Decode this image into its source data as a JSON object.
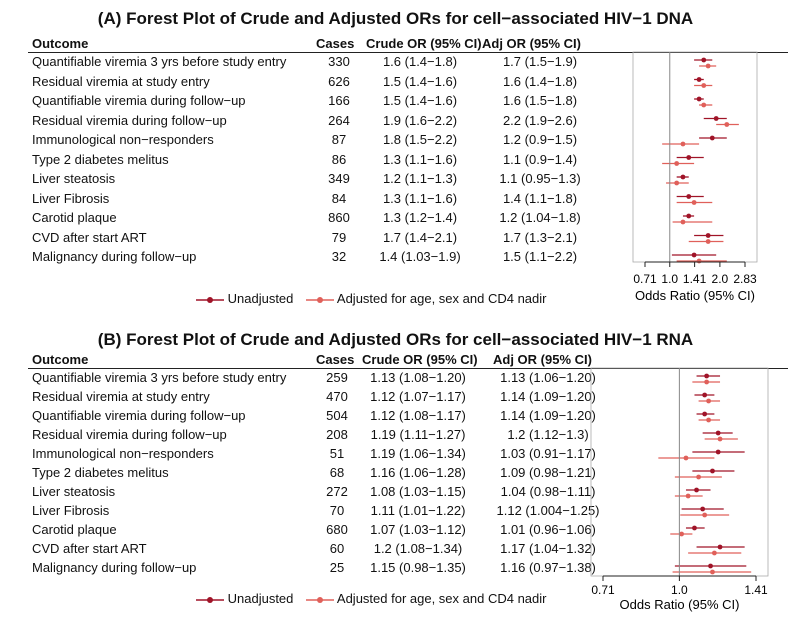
{
  "chart_data": [
    {
      "type": "forest",
      "title": "(A) Forest Plot of Crude and Adjusted ORs for cell−associated HIV−1 DNA",
      "columns": [
        "Outcome",
        "Cases",
        "Crude OR (95% CI)",
        "Adj OR (95% CI)"
      ],
      "xlabel": "Odds Ratio (95% CI)",
      "xscale": "log",
      "xticks": [
        "0.71",
        "1.0",
        "1.41",
        "2.0",
        "2.83"
      ],
      "xlim": [
        0.71,
        2.83
      ],
      "reference_line": 1.0,
      "legend": [
        "Unadjusted",
        "Adjusted for age, sex and CD4 nadir"
      ],
      "colors": {
        "unadjusted": "#a01428",
        "adjusted": "#e0605a"
      },
      "rows": [
        {
          "outcome": "Quantifiable viremia 3 yrs before study entry",
          "cases": "330",
          "crude_text": "1.6 (1.4−1.8)",
          "adj_text": "1.7 (1.5−1.9)",
          "crude": [
            1.6,
            1.4,
            1.8
          ],
          "adj": [
            1.7,
            1.5,
            1.9
          ]
        },
        {
          "outcome": "Residual viremia at study entry",
          "cases": "626",
          "crude_text": "1.5 (1.4−1.6)",
          "adj_text": "1.6 (1.4−1.8)",
          "crude": [
            1.5,
            1.4,
            1.6
          ],
          "adj": [
            1.6,
            1.4,
            1.8
          ]
        },
        {
          "outcome": "Quantifiable viremia during follow−up",
          "cases": "166",
          "crude_text": "1.5 (1.4−1.6)",
          "adj_text": "1.6 (1.5−1.8)",
          "crude": [
            1.5,
            1.4,
            1.6
          ],
          "adj": [
            1.6,
            1.5,
            1.8
          ]
        },
        {
          "outcome": "Residual viremia during follow−up",
          "cases": "264",
          "crude_text": "1.9 (1.6−2.2)",
          "adj_text": "2.2 (1.9−2.6)",
          "crude": [
            1.9,
            1.6,
            2.2
          ],
          "adj": [
            2.2,
            1.9,
            2.6
          ]
        },
        {
          "outcome": "Immunological non−responders",
          "cases": "87",
          "crude_text": "1.8 (1.5−2.2)",
          "adj_text": "1.2 (0.9−1.5)",
          "crude": [
            1.8,
            1.5,
            2.2
          ],
          "adj": [
            1.2,
            0.9,
            1.5
          ]
        },
        {
          "outcome": "Type 2 diabetes melitus",
          "cases": "86",
          "crude_text": "1.3 (1.1−1.6)",
          "adj_text": "1.1 (0.9−1.4)",
          "crude": [
            1.3,
            1.1,
            1.6
          ],
          "adj": [
            1.1,
            0.9,
            1.4
          ]
        },
        {
          "outcome": "Liver steatosis",
          "cases": "349",
          "crude_text": "1.2 (1.1−1.3)",
          "adj_text": "1.1 (0.95−1.3)",
          "crude": [
            1.2,
            1.1,
            1.3
          ],
          "adj": [
            1.1,
            0.95,
            1.3
          ]
        },
        {
          "outcome": "Liver Fibrosis",
          "cases": "84",
          "crude_text": "1.3 (1.1−1.6)",
          "adj_text": "1.4 (1.1−1.8)",
          "crude": [
            1.3,
            1.1,
            1.6
          ],
          "adj": [
            1.4,
            1.1,
            1.8
          ]
        },
        {
          "outcome": "Carotid plaque",
          "cases": "860",
          "crude_text": "1.3 (1.2−1.4)",
          "adj_text": "1.2 (1.04−1.8)",
          "crude": [
            1.3,
            1.2,
            1.4
          ],
          "adj": [
            1.2,
            1.04,
            1.8
          ]
        },
        {
          "outcome": "CVD after start ART",
          "cases": "79",
          "crude_text": "1.7 (1.4−2.1)",
          "adj_text": "1.7 (1.3−2.1)",
          "crude": [
            1.7,
            1.4,
            2.1
          ],
          "adj": [
            1.7,
            1.3,
            2.1
          ]
        },
        {
          "outcome": "Malignancy during follow−up",
          "cases": "32",
          "crude_text": "1.4 (1.03−1.9)",
          "adj_text": "1.5 (1.1−2.2)",
          "crude": [
            1.4,
            1.03,
            1.9
          ],
          "adj": [
            1.5,
            1.1,
            2.2
          ]
        }
      ]
    },
    {
      "type": "forest",
      "title": "(B) Forest Plot of Crude and Adjusted ORs for cell−associated HIV−1 RNA",
      "columns": [
        "Outcome",
        "Cases",
        "Crude OR (95% CI)",
        "Adj OR (95% CI)"
      ],
      "xlabel": "Odds Ratio (95% CI)",
      "xscale": "log",
      "xticks": [
        "0.71",
        "1.0",
        "1.41"
      ],
      "xlim": [
        0.71,
        1.41
      ],
      "reference_line": 1.0,
      "legend": [
        "Unadjusted",
        "Adjusted for age, sex and CD4 nadir"
      ],
      "colors": {
        "unadjusted": "#a01428",
        "adjusted": "#e0605a"
      },
      "rows": [
        {
          "outcome": "Quantifiable viremia 3 yrs before study entry",
          "cases": "259",
          "crude_text": "1.13 (1.08−1.20)",
          "adj_text": "1.13 (1.06−1.20)",
          "crude": [
            1.13,
            1.08,
            1.2
          ],
          "adj": [
            1.13,
            1.06,
            1.2
          ]
        },
        {
          "outcome": "Residual viremia at study entry",
          "cases": "470",
          "crude_text": "1.12 (1.07−1.17)",
          "adj_text": "1.14 (1.09−1.20)",
          "crude": [
            1.12,
            1.07,
            1.17
          ],
          "adj": [
            1.14,
            1.09,
            1.2
          ]
        },
        {
          "outcome": "Quantifiable viremia during follow−up",
          "cases": "504",
          "crude_text": "1.12 (1.08−1.17)",
          "adj_text": "1.14 (1.09−1.20)",
          "crude": [
            1.12,
            1.08,
            1.17
          ],
          "adj": [
            1.14,
            1.09,
            1.2
          ]
        },
        {
          "outcome": "Residual viremia during follow−up",
          "cases": "208",
          "crude_text": "1.19 (1.11−1.27)",
          "adj_text": "1.2 (1.12−1.3)",
          "crude": [
            1.19,
            1.11,
            1.27
          ],
          "adj": [
            1.2,
            1.12,
            1.3
          ]
        },
        {
          "outcome": "Immunological non−responders",
          "cases": "51",
          "crude_text": "1.19 (1.06−1.34)",
          "adj_text": "1.03 (0.91−1.17)",
          "crude": [
            1.19,
            1.06,
            1.34
          ],
          "adj": [
            1.03,
            0.91,
            1.17
          ]
        },
        {
          "outcome": "Type 2 diabetes melitus",
          "cases": "68",
          "crude_text": "1.16 (1.06−1.28)",
          "adj_text": "1.09 (0.98−1.21)",
          "crude": [
            1.16,
            1.06,
            1.28
          ],
          "adj": [
            1.09,
            0.98,
            1.21
          ]
        },
        {
          "outcome": "Liver steatosis",
          "cases": "272",
          "crude_text": "1.08 (1.03−1.15)",
          "adj_text": "1.04 (0.98−1.11)",
          "crude": [
            1.08,
            1.03,
            1.15
          ],
          "adj": [
            1.04,
            0.98,
            1.11
          ]
        },
        {
          "outcome": "Liver Fibrosis",
          "cases": "70",
          "crude_text": "1.11 (1.01−1.22)",
          "adj_text": "1.12 (1.004−1.25)",
          "crude": [
            1.11,
            1.01,
            1.22
          ],
          "adj": [
            1.12,
            1.004,
            1.25
          ]
        },
        {
          "outcome": "Carotid plaque",
          "cases": "680",
          "crude_text": "1.07 (1.03−1.12)",
          "adj_text": "1.01 (0.96−1.06)",
          "crude": [
            1.07,
            1.03,
            1.12
          ],
          "adj": [
            1.01,
            0.96,
            1.06
          ]
        },
        {
          "outcome": "CVD after start ART",
          "cases": "60",
          "crude_text": "1.2 (1.08−1.34)",
          "adj_text": "1.17 (1.04−1.32)",
          "crude": [
            1.2,
            1.08,
            1.34
          ],
          "adj": [
            1.17,
            1.04,
            1.32
          ]
        },
        {
          "outcome": "Malignancy during follow−up",
          "cases": "25",
          "crude_text": "1.15 (0.98−1.35)",
          "adj_text": "1.16 (0.97−1.38)",
          "crude": [
            1.15,
            0.98,
            1.35
          ],
          "adj": [
            1.16,
            0.97,
            1.38
          ]
        }
      ]
    }
  ]
}
